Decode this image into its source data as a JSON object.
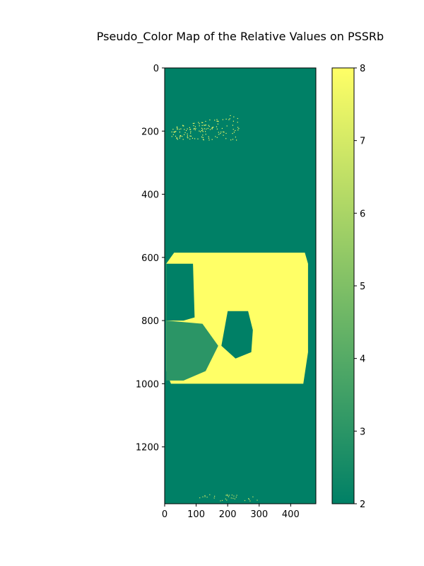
{
  "chart_data": {
    "type": "heatmap",
    "title": "Pseudo_Color Map of the Relative Values on PSSRb",
    "xlabel": "",
    "ylabel": "",
    "xlim": [
      0,
      480
    ],
    "ylim": [
      1380,
      0
    ],
    "x_ticks": [
      0,
      100,
      200,
      300,
      400
    ],
    "y_ticks": [
      0,
      200,
      400,
      600,
      800,
      1000,
      1200
    ],
    "colorbar": {
      "min": 2,
      "max": 8,
      "ticks": [
        2,
        3,
        4,
        5,
        6,
        7,
        8
      ],
      "colormap": "summer",
      "low_color": "#008066",
      "high_color": "#ffff66"
    },
    "background_value": 2,
    "regions": [
      {
        "name": "high-value block",
        "value": 8,
        "polygon": [
          [
            30,
            585
          ],
          [
            445,
            585
          ],
          [
            455,
            620
          ],
          [
            455,
            900
          ],
          [
            440,
            1000
          ],
          [
            20,
            1000
          ],
          [
            5,
            960
          ],
          [
            5,
            620
          ]
        ]
      },
      {
        "name": "low-value pocket left",
        "value": 2,
        "polygon": [
          [
            5,
            620
          ],
          [
            90,
            620
          ],
          [
            95,
            790
          ],
          [
            60,
            800
          ],
          [
            5,
            800
          ]
        ]
      },
      {
        "name": "low-value pocket center",
        "value": 2,
        "polygon": [
          [
            200,
            770
          ],
          [
            265,
            770
          ],
          [
            280,
            830
          ],
          [
            275,
            900
          ],
          [
            225,
            920
          ],
          [
            180,
            880
          ]
        ]
      },
      {
        "name": "low-value region lower-left",
        "value": 3,
        "polygon": [
          [
            5,
            800
          ],
          [
            120,
            810
          ],
          [
            170,
            880
          ],
          [
            130,
            960
          ],
          [
            60,
            990
          ],
          [
            5,
            990
          ]
        ]
      }
    ],
    "scatter_clusters": [
      {
        "name": "sparse high values near top",
        "value": 8,
        "x_range": [
          20,
          240
        ],
        "y_range": [
          140,
          230
        ]
      },
      {
        "name": "sparse high values near bottom",
        "value": 7,
        "x_range": [
          110,
          300
        ],
        "y_range": [
          1350,
          1370
        ]
      }
    ]
  }
}
